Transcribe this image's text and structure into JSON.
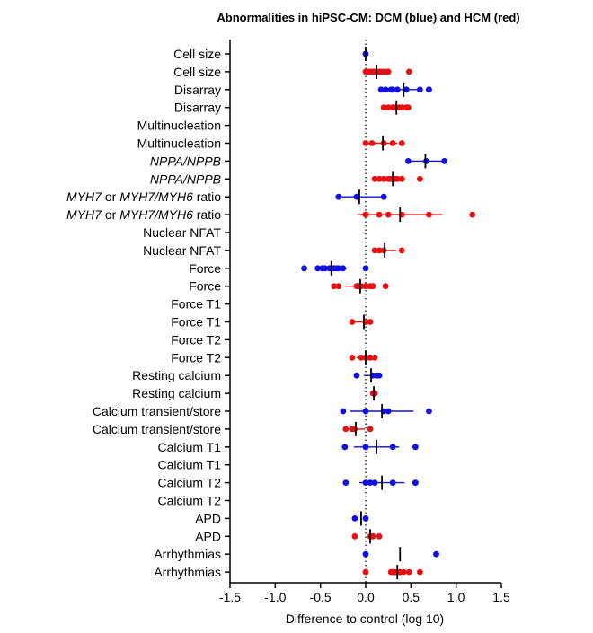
{
  "chart_data": {
    "type": "scatter",
    "title": "Abnormalities in hiPSC-CM: DCM (blue) and HCM (red)",
    "xlabel": "Difference to control (log 10)",
    "xlim": [
      -1.5,
      1.5
    ],
    "xticks": [
      "-1.5",
      "-1.0",
      "-0.5",
      "0.0",
      "0.5",
      "1.0",
      "1.5"
    ],
    "reference_line": 0,
    "colors": {
      "DCM": "#1010e0",
      "HCM": "#e81010",
      "mean": "#000000"
    },
    "rows": [
      {
        "label": [
          {
            "t": "Cell size"
          }
        ],
        "group": "DCM",
        "points": [
          0.0,
          0.0
        ],
        "mean": 0.0,
        "sd": 0.0
      },
      {
        "label": [
          {
            "t": "Cell size"
          }
        ],
        "group": "HCM",
        "points": [
          0.0,
          0.02,
          0.05,
          0.07,
          0.09,
          0.1,
          0.13,
          0.16,
          0.19,
          0.22,
          0.25,
          0.48
        ],
        "mean": 0.12,
        "sd": 0.11
      },
      {
        "label": [
          {
            "t": "Disarray"
          }
        ],
        "group": "DCM",
        "points": [
          0.17,
          0.22,
          0.28,
          0.3,
          0.35,
          0.45,
          0.6,
          0.7,
          0.7
        ],
        "mean": 0.42,
        "sd": 0.2
      },
      {
        "label": [
          {
            "t": "Disarray"
          }
        ],
        "group": "HCM",
        "points": [
          0.2,
          0.25,
          0.3,
          0.33,
          0.37,
          0.4,
          0.45,
          0.47
        ],
        "mean": 0.34,
        "sd": 0.1
      },
      {
        "label": [
          {
            "t": "Multinucleation"
          }
        ],
        "group": "DCM",
        "points": [],
        "mean": null,
        "sd": null
      },
      {
        "label": [
          {
            "t": "Multinucleation"
          }
        ],
        "group": "HCM",
        "points": [
          0.0,
          0.07,
          0.2,
          0.3,
          0.4
        ],
        "mean": 0.19,
        "sd": 0.16
      },
      {
        "label": [
          {
            "t": "NPPA/NPPB",
            "i": true
          }
        ],
        "group": "DCM",
        "points": [
          0.47,
          0.67,
          0.87
        ],
        "mean": 0.66,
        "sd": 0.2
      },
      {
        "label": [
          {
            "t": "NPPA/NPPB",
            "i": true
          }
        ],
        "group": "HCM",
        "points": [
          0.1,
          0.15,
          0.2,
          0.25,
          0.28,
          0.3,
          0.32,
          0.35,
          0.4,
          0.6
        ],
        "mean": 0.3,
        "sd": 0.13
      },
      {
        "label": [
          {
            "t": "MYH7",
            "i": true
          },
          {
            "t": " or "
          },
          {
            "t": "MYH7/MYH6",
            "i": true
          },
          {
            "t": " ratio"
          }
        ],
        "group": "DCM",
        "points": [
          -0.3,
          -0.1,
          0.2
        ],
        "mean": -0.07,
        "sd": 0.25
      },
      {
        "label": [
          {
            "t": "MYH7",
            "i": true
          },
          {
            "t": " or "
          },
          {
            "t": "MYH7/MYH6",
            "i": true
          },
          {
            "t": " ratio"
          }
        ],
        "group": "HCM",
        "points": [
          0.0,
          0.0,
          0.15,
          0.25,
          0.4,
          0.7,
          1.18
        ],
        "mean": 0.38,
        "sd": 0.47
      },
      {
        "label": [
          {
            "t": "Nuclear NFAT"
          }
        ],
        "group": "DCM",
        "points": [],
        "mean": null,
        "sd": null
      },
      {
        "label": [
          {
            "t": "Nuclear NFAT"
          }
        ],
        "group": "HCM",
        "points": [
          0.1,
          0.15,
          0.2,
          0.4
        ],
        "mean": 0.21,
        "sd": 0.13
      },
      {
        "label": [
          {
            "t": "Force"
          }
        ],
        "group": "DCM",
        "points": [
          -0.68,
          -0.53,
          -0.48,
          -0.45,
          -0.4,
          -0.37,
          -0.35,
          -0.32,
          -0.3,
          -0.25,
          0.0
        ],
        "mean": -0.38,
        "sd": 0.17
      },
      {
        "label": [
          {
            "t": "Force"
          }
        ],
        "group": "HCM",
        "points": [
          -0.35,
          -0.3,
          -0.1,
          -0.08,
          -0.05,
          0.0,
          0.05,
          0.08,
          0.22
        ],
        "mean": -0.06,
        "sd": 0.17
      },
      {
        "label": [
          {
            "t": "Force T1"
          }
        ],
        "group": "DCM",
        "points": [],
        "mean": null,
        "sd": null
      },
      {
        "label": [
          {
            "t": "Force T1"
          }
        ],
        "group": "HCM",
        "points": [
          -0.15,
          0.0,
          0.05
        ],
        "mean": -0.02,
        "sd": 0.1
      },
      {
        "label": [
          {
            "t": "Force T2"
          }
        ],
        "group": "DCM",
        "points": [],
        "mean": null,
        "sd": null
      },
      {
        "label": [
          {
            "t": "Force T2"
          }
        ],
        "group": "HCM",
        "points": [
          -0.15,
          -0.05,
          0.0,
          0.05,
          0.1
        ],
        "mean": 0.0,
        "sd": 0.1
      },
      {
        "label": [
          {
            "t": "Resting calcium"
          }
        ],
        "group": "DCM",
        "points": [
          -0.1,
          0.08,
          0.12,
          0.15
        ],
        "mean": 0.06,
        "sd": 0.08
      },
      {
        "label": [
          {
            "t": "Resting calcium"
          }
        ],
        "group": "HCM",
        "points": [
          0.08,
          0.1,
          0.1
        ],
        "mean": 0.09,
        "sd": 0.0
      },
      {
        "label": [
          {
            "t": "Calcium transient/store"
          }
        ],
        "group": "DCM",
        "points": [
          -0.25,
          0.0,
          0.2,
          0.25,
          0.7
        ],
        "mean": 0.18,
        "sd": 0.35
      },
      {
        "label": [
          {
            "t": "Calcium transient/store"
          }
        ],
        "group": "HCM",
        "points": [
          -0.22,
          -0.15,
          -0.12,
          0.05
        ],
        "mean": -0.11,
        "sd": 0.1
      },
      {
        "label": [
          {
            "t": "Calcium T1"
          }
        ],
        "group": "DCM",
        "points": [
          -0.23,
          0.0,
          0.0,
          0.3,
          0.55
        ],
        "mean": 0.12,
        "sd": 0.25
      },
      {
        "label": [
          {
            "t": "Calcium T1"
          }
        ],
        "group": "DCM",
        "points": [],
        "mean": null,
        "sd": null
      },
      {
        "label": [
          {
            "t": "Calcium T2"
          }
        ],
        "group": "DCM",
        "points": [
          -0.22,
          0.0,
          0.05,
          0.1,
          0.3,
          0.55,
          0.55
        ],
        "mean": 0.18,
        "sd": 0.25
      },
      {
        "label": [
          {
            "t": "Calcium T2"
          }
        ],
        "group": "DCM",
        "points": [],
        "mean": null,
        "sd": null
      },
      {
        "label": [
          {
            "t": "APD"
          }
        ],
        "group": "DCM",
        "points": [
          -0.12,
          0.0
        ],
        "mean": -0.05,
        "sd": 0.0
      },
      {
        "label": [
          {
            "t": "APD"
          }
        ],
        "group": "HCM",
        "points": [
          -0.12,
          0.05,
          0.08,
          0.15
        ],
        "mean": 0.05,
        "sd": 0.0
      },
      {
        "label": [
          {
            "t": "Arrhythmias"
          }
        ],
        "group": "DCM",
        "points": [
          0.0,
          0.78
        ],
        "mean": 0.38,
        "sd": 0.0
      },
      {
        "label": [
          {
            "t": "Arrhythmias"
          }
        ],
        "group": "HCM",
        "points": [
          0.0,
          0.28,
          0.3,
          0.32,
          0.35,
          0.38,
          0.42,
          0.48,
          0.6
        ],
        "mean": 0.35,
        "sd": 0.05
      }
    ]
  }
}
